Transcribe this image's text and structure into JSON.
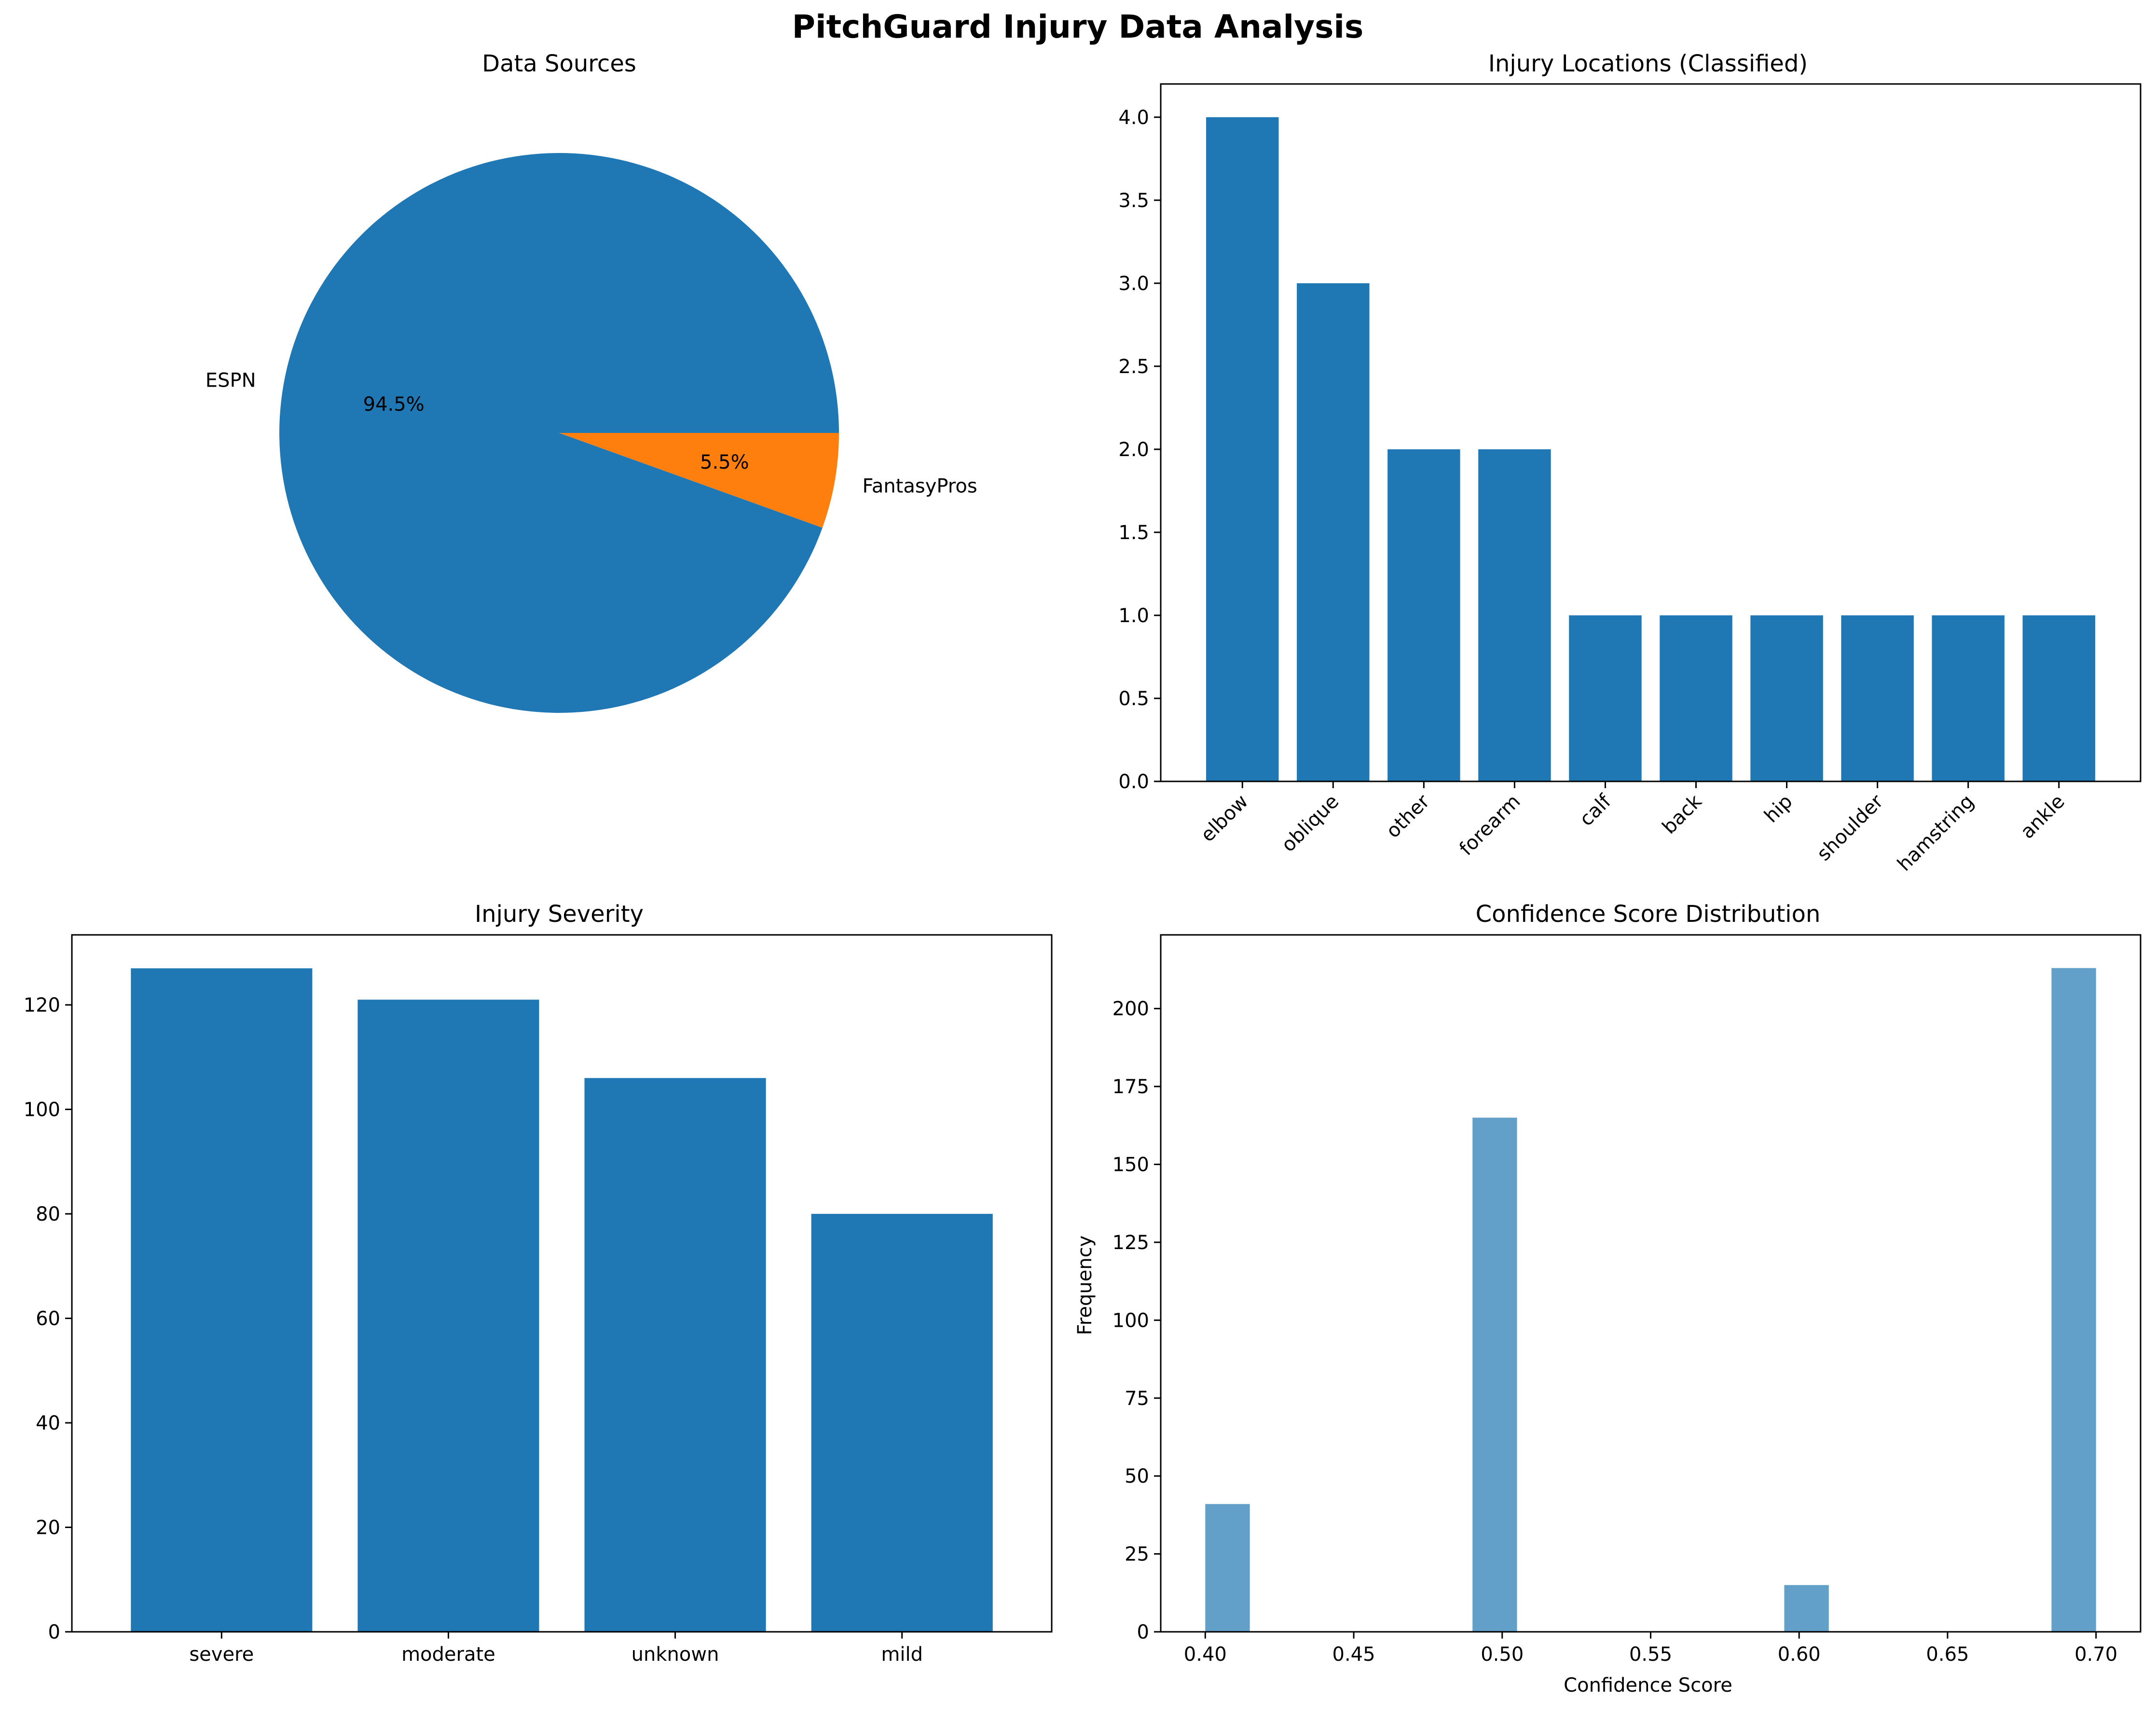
{
  "title": "PitchGuard Injury Data Analysis",
  "chart_data": [
    {
      "type": "pie",
      "title": "Data Sources",
      "labels": [
        "ESPN",
        "FantasyPros"
      ],
      "values": [
        94.5,
        5.5
      ],
      "pct_labels": [
        "94.5%",
        "5.5%"
      ],
      "colors": [
        "#1f77b4",
        "#ff7f0e"
      ]
    },
    {
      "type": "bar",
      "title": "Injury Locations (Classified)",
      "categories": [
        "elbow",
        "oblique",
        "other",
        "forearm",
        "calf",
        "back",
        "hip",
        "shoulder",
        "hamstring",
        "ankle"
      ],
      "values": [
        4,
        3,
        2,
        2,
        1,
        1,
        1,
        1,
        1,
        1
      ],
      "ylim": [
        0,
        4.2
      ],
      "yticks": [
        "0.0",
        "0.5",
        "1.0",
        "1.5",
        "2.0",
        "2.5",
        "3.0",
        "3.5",
        "4.0"
      ],
      "xtick_rotation": 45,
      "color": "#1f77b4"
    },
    {
      "type": "bar",
      "title": "Injury Severity",
      "categories": [
        "severe",
        "moderate",
        "unknown",
        "mild"
      ],
      "values": [
        127,
        121,
        106,
        80
      ],
      "ylim": [
        0,
        133.4
      ],
      "yticks": [
        "0",
        "20",
        "40",
        "60",
        "80",
        "100",
        "120"
      ],
      "color": "#1f77b4"
    },
    {
      "type": "bar",
      "title": "Confidence Score Distribution",
      "xlabel": "Confidence Score",
      "ylabel": "Frequency",
      "bins": [
        {
          "x0": 0.4,
          "x1": 0.415,
          "count": 41
        },
        {
          "x0": 0.49,
          "x1": 0.505,
          "count": 165
        },
        {
          "x0": 0.595,
          "x1": 0.61,
          "count": 15
        },
        {
          "x0": 0.685,
          "x1": 0.7,
          "count": 213
        }
      ],
      "xlim": [
        0.385,
        0.715
      ],
      "ylim": [
        0,
        223.65
      ],
      "xticks": [
        "0.40",
        "0.45",
        "0.50",
        "0.55",
        "0.60",
        "0.65",
        "0.70"
      ],
      "yticks": [
        "0",
        "25",
        "50",
        "75",
        "100",
        "125",
        "150",
        "175",
        "200"
      ],
      "color": "#1f77b4",
      "alpha": 0.7
    }
  ]
}
